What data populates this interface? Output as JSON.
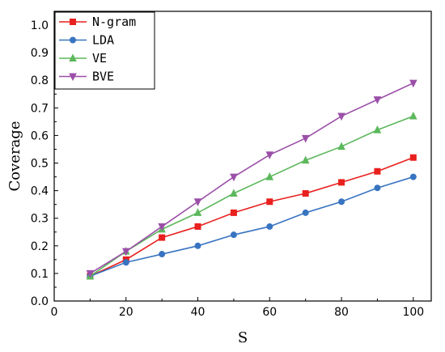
{
  "chart_data": {
    "type": "line",
    "title": "",
    "xlabel": "S",
    "ylabel": "Coverage",
    "xlim": [
      0,
      105
    ],
    "ylim": [
      0.0,
      1.05
    ],
    "x_ticks": [
      0,
      20,
      40,
      60,
      80,
      100
    ],
    "x_tick_labels": [
      "0",
      "20",
      "40",
      "60",
      "80",
      "100"
    ],
    "y_ticks": [
      0.0,
      0.1,
      0.2,
      0.3,
      0.4,
      0.5,
      0.6,
      0.7,
      0.8,
      0.9,
      1.0
    ],
    "y_tick_labels": [
      "0.0",
      "0.1",
      "0.2",
      "0.3",
      "0.4",
      "0.5",
      "0.6",
      "0.7",
      "0.8",
      "0.9",
      "1.0"
    ],
    "grid": false,
    "legend_position": "top-left",
    "x": [
      10,
      20,
      30,
      40,
      50,
      60,
      70,
      80,
      90,
      100
    ],
    "series": [
      {
        "name": "N-gram",
        "color": "#e8201e",
        "marker": "square",
        "values": [
          0.09,
          0.15,
          0.23,
          0.27,
          0.32,
          0.36,
          0.39,
          0.43,
          0.47,
          0.52
        ]
      },
      {
        "name": "LDA",
        "color": "#3874c1",
        "marker": "circle",
        "values": [
          0.09,
          0.14,
          0.17,
          0.2,
          0.24,
          0.27,
          0.32,
          0.36,
          0.41,
          0.45
        ]
      },
      {
        "name": "VE",
        "color": "#5cb85c",
        "marker": "triangle-up",
        "values": [
          0.09,
          0.18,
          0.26,
          0.32,
          0.39,
          0.45,
          0.51,
          0.56,
          0.62,
          0.67
        ]
      },
      {
        "name": "BVE",
        "color": "#9b4fa8",
        "marker": "triangle-down",
        "values": [
          0.1,
          0.18,
          0.27,
          0.36,
          0.45,
          0.53,
          0.59,
          0.67,
          0.73,
          0.79
        ]
      }
    ]
  }
}
